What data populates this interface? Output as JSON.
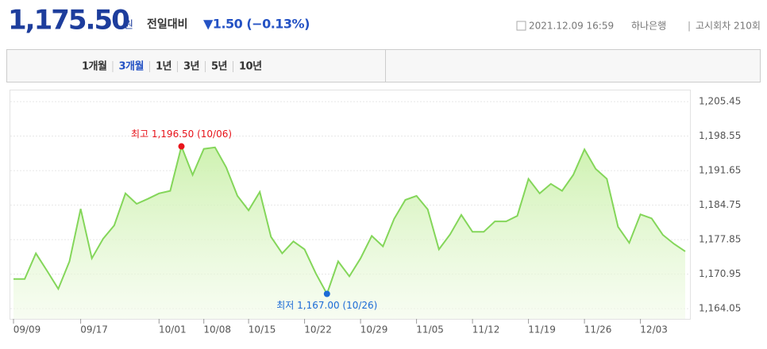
{
  "header": {
    "price": "1,175.50",
    "currency": "원",
    "change_label": "전일대비",
    "change": "▼1.50 (−0.13%)",
    "datetime": "2021.12.09 16:59",
    "bank": "하나은행",
    "round": "고시회차 210회"
  },
  "tabs": {
    "items": [
      "1개월",
      "3개월",
      "1년",
      "3년",
      "5년",
      "10년"
    ],
    "selected": "3개월"
  },
  "chart_data": {
    "type": "area",
    "color": "#84d65a",
    "categories": [
      "09/09",
      null,
      null,
      null,
      null,
      null,
      "09/17",
      null,
      null,
      null,
      null,
      null,
      null,
      "10/01",
      null,
      null,
      null,
      "10/08",
      null,
      null,
      null,
      "10/15",
      null,
      null,
      null,
      null,
      "10/22",
      null,
      null,
      null,
      null,
      "10/29",
      null,
      null,
      null,
      null,
      "11/05",
      null,
      null,
      null,
      null,
      "11/12",
      null,
      null,
      null,
      null,
      "11/19",
      null,
      null,
      null,
      null,
      "11/26",
      null,
      null,
      null,
      null,
      "12/03",
      null,
      null,
      null,
      null
    ],
    "values": [
      1169.97,
      1169.97,
      1175.1,
      1171.6,
      1168.0,
      1173.5,
      1184.0,
      1174.1,
      1178.0,
      1180.7,
      1187.1,
      1185.0,
      1186.0,
      1187.1,
      1187.6,
      1196.5,
      1190.8,
      1196.0,
      1196.3,
      1192.3,
      1186.6,
      1183.7,
      1187.4,
      1178.4,
      1175.1,
      1177.5,
      1175.9,
      1171.1,
      1167.0,
      1173.5,
      1170.5,
      1174.1,
      1178.6,
      1176.5,
      1182.0,
      1185.8,
      1186.6,
      1183.9,
      1175.9,
      1178.9,
      1182.8,
      1179.4,
      1179.4,
      1181.5,
      1181.5,
      1182.6,
      1190.0,
      1187.1,
      1189.0,
      1187.6,
      1190.8,
      1195.9,
      1192.0,
      1190.0,
      1180.4,
      1177.2,
      1182.9,
      1182.1,
      1178.8,
      1177.0,
      1175.5
    ],
    "max_label": "최고 1,196.50 (10/06)",
    "min_label": "최저 1,167.00 (10/26)",
    "max_color": "#e8141b",
    "min_color": "#1c6bd6",
    "ylim": [
      1162.0,
      1207.85
    ],
    "yticks": [
      {
        "value": 1164.05,
        "label": "1,164.05"
      },
      {
        "value": 1170.95,
        "label": "1,170.95"
      },
      {
        "value": 1177.85,
        "label": "1,177.85"
      },
      {
        "value": 1184.75,
        "label": "1,184.75"
      },
      {
        "value": 1191.65,
        "label": "1,191.65"
      },
      {
        "value": 1198.55,
        "label": "1,198.55"
      },
      {
        "value": 1205.45,
        "label": "1,205.45"
      }
    ],
    "grid": true
  }
}
